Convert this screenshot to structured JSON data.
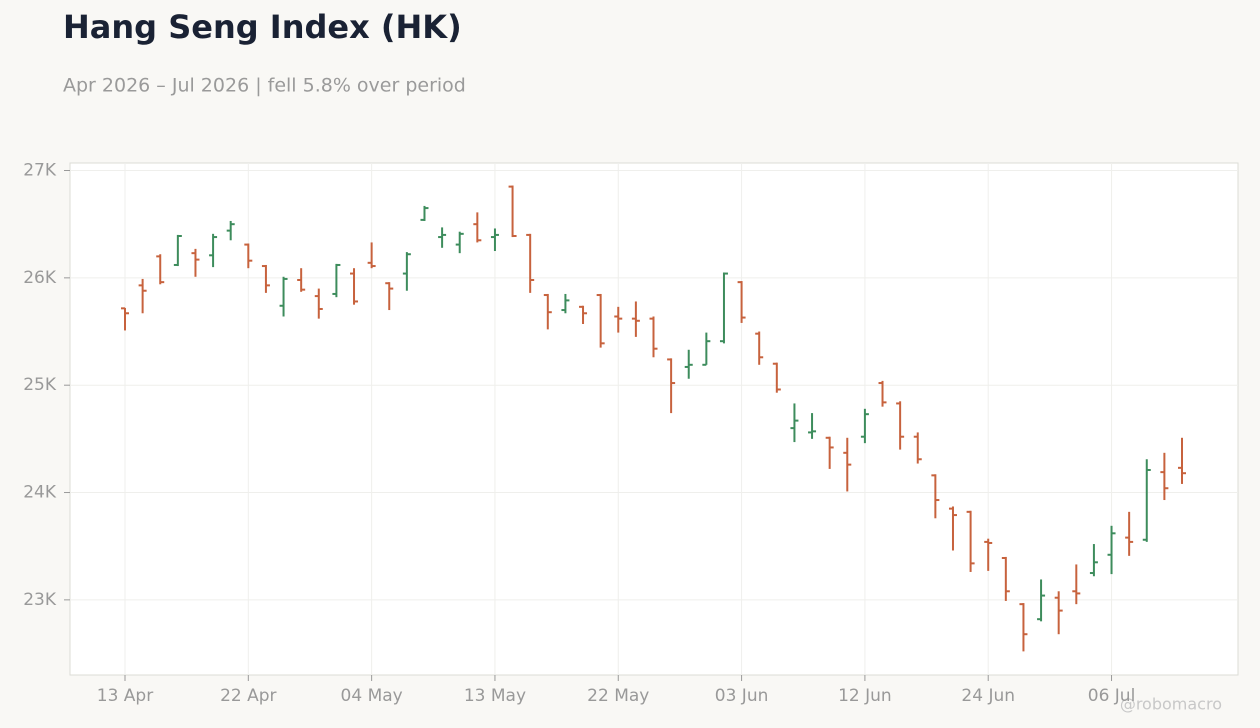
{
  "chart_data": {
    "type": "ohlc",
    "title": "Hang Seng Index (HK)",
    "subtitle": "Apr 2026 – Jul 2026 | fell 5.8% over period",
    "watermark": "@robomacro",
    "categories": [
      "13 Apr",
      null,
      null,
      null,
      null,
      null,
      null,
      "22 Apr",
      null,
      null,
      null,
      null,
      null,
      null,
      "04 May",
      null,
      null,
      null,
      null,
      null,
      null,
      "13 May",
      null,
      null,
      null,
      null,
      null,
      null,
      "22 May",
      null,
      null,
      null,
      null,
      null,
      null,
      "03 Jun",
      null,
      null,
      null,
      null,
      null,
      null,
      "12 Jun",
      null,
      null,
      null,
      null,
      null,
      null,
      "24 Jun",
      null,
      null,
      null,
      null,
      null,
      null,
      "06 Jul",
      null,
      null,
      null,
      null
    ],
    "open": [
      25716,
      25930,
      26200,
      26120,
      26230,
      26210,
      26440,
      26310,
      26110,
      25740,
      25980,
      25830,
      25850,
      26040,
      26140,
      25950,
      26040,
      26540,
      26380,
      26310,
      26500,
      26380,
      26850,
      26400,
      25840,
      25700,
      25730,
      25840,
      25640,
      25620,
      25620,
      25240,
      25170,
      25190,
      25410,
      25960,
      25480,
      25200,
      24600,
      24560,
      24510,
      24370,
      24520,
      25020,
      24830,
      24520,
      24160,
      23850,
      23820,
      23540,
      23390,
      22960,
      22820,
      23020,
      23080,
      23250,
      23420,
      23580,
      23560,
      24190,
      24230
    ],
    "high": [
      25720,
      25990,
      26220,
      26400,
      26270,
      26410,
      26530,
      26320,
      26120,
      26010,
      26090,
      25900,
      26130,
      26090,
      26330,
      25960,
      26240,
      26670,
      26470,
      26430,
      26610,
      26460,
      26860,
      26410,
      25850,
      25850,
      25740,
      25850,
      25730,
      25780,
      25640,
      25250,
      25330,
      25490,
      26050,
      25970,
      25500,
      25210,
      24830,
      24740,
      24520,
      24510,
      24780,
      25040,
      24850,
      24560,
      24170,
      23870,
      23830,
      23570,
      23400,
      22970,
      23190,
      23080,
      23330,
      23520,
      23690,
      23820,
      24310,
      24370,
      24510
    ],
    "low": [
      25510,
      25670,
      25940,
      26110,
      26010,
      26100,
      26350,
      26090,
      25860,
      25640,
      25870,
      25620,
      25820,
      25750,
      26090,
      25700,
      25880,
      26530,
      26280,
      26230,
      26330,
      26250,
      26380,
      25860,
      25520,
      25670,
      25570,
      25350,
      25490,
      25450,
      25260,
      24740,
      25060,
      25190,
      25390,
      25580,
      25190,
      24930,
      24470,
      24500,
      24220,
      24010,
      24460,
      24800,
      24400,
      24270,
      23760,
      23460,
      23260,
      23270,
      22990,
      22520,
      22800,
      22680,
      22960,
      23220,
      23240,
      23410,
      23540,
      23930,
      24080
    ],
    "close": [
      25670,
      25880,
      25960,
      26390,
      26170,
      26380,
      26500,
      26160,
      25930,
      25990,
      25890,
      25710,
      26120,
      25780,
      26110,
      25900,
      26220,
      26650,
      26400,
      26410,
      26350,
      26400,
      26390,
      25980,
      25680,
      25790,
      25670,
      25390,
      25620,
      25600,
      25340,
      25020,
      25190,
      25410,
      26040,
      25630,
      25260,
      24960,
      24670,
      24570,
      24420,
      24260,
      24730,
      24840,
      24520,
      24310,
      23930,
      23790,
      23340,
      23530,
      23080,
      22680,
      23040,
      22900,
      23060,
      23350,
      23620,
      23540,
      24210,
      24040,
      24180
    ],
    "up_color": "#3d8c5c",
    "down_color": "#c7623d",
    "ylim": [
      22300,
      27070
    ],
    "yticks": [
      {
        "value": 23000,
        "label": "23K"
      },
      {
        "value": 24000,
        "label": "24K"
      },
      {
        "value": 25000,
        "label": "25K"
      },
      {
        "value": 26000,
        "label": "26K"
      },
      {
        "value": 27000,
        "label": "27K"
      }
    ],
    "grid": true
  }
}
